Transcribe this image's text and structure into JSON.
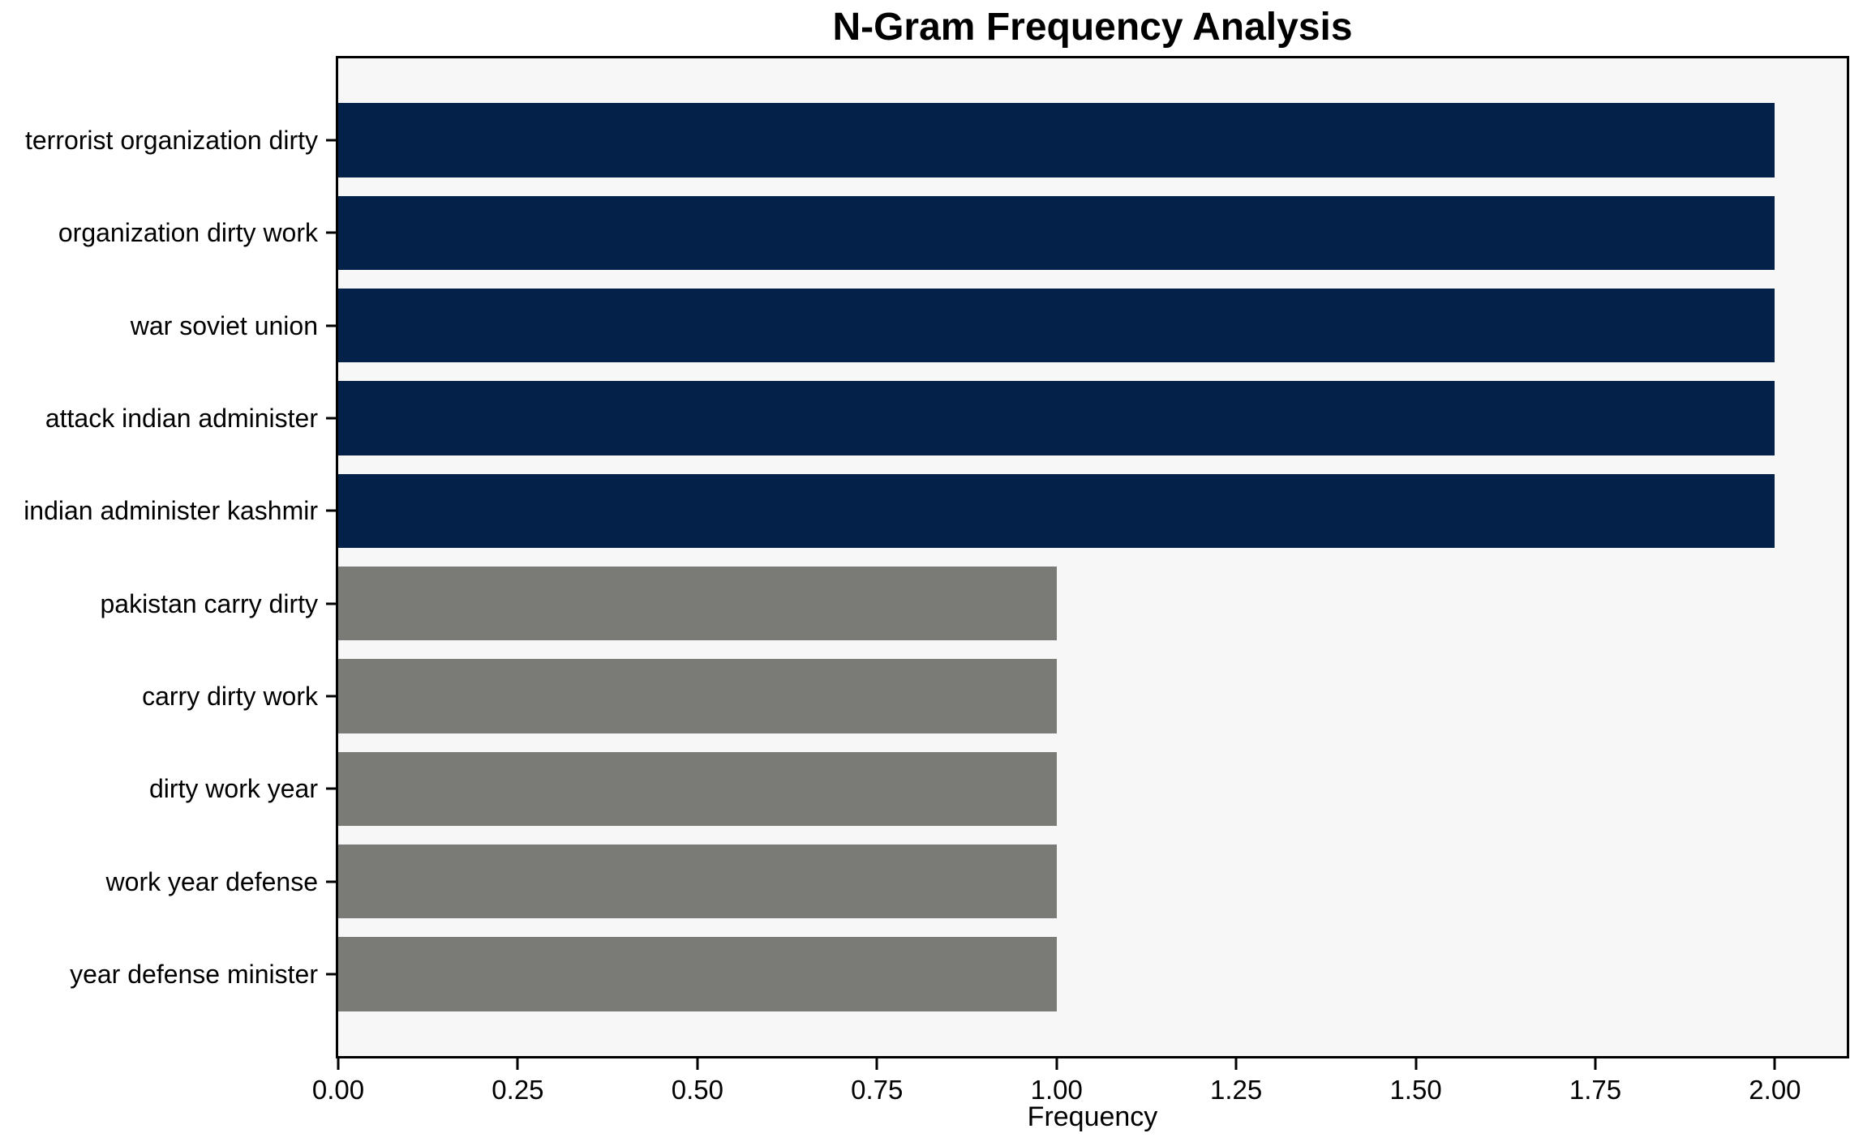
{
  "chart_data": {
    "type": "bar",
    "orientation": "horizontal",
    "title": "N-Gram Frequency Analysis",
    "xlabel": "Frequency",
    "ylabel": "",
    "categories": [
      "terrorist organization dirty",
      "organization dirty work",
      "war soviet union",
      "attack indian administer",
      "indian administer kashmir",
      "pakistan carry dirty",
      "carry dirty work",
      "dirty work year",
      "work year defense",
      "year defense minister"
    ],
    "values": [
      2,
      2,
      2,
      2,
      2,
      1,
      1,
      1,
      1,
      1
    ],
    "bar_colors": [
      "#042149",
      "#042149",
      "#042149",
      "#042149",
      "#042149",
      "#7a7a77",
      "#7a7a77",
      "#7a7a77",
      "#7a7a77",
      "#7a7a77"
    ],
    "xlim": [
      0,
      2.1
    ],
    "x_tick_values": [
      0,
      0.25,
      0.5,
      0.75,
      1.0,
      1.25,
      1.5,
      1.75,
      2.0
    ],
    "x_tick_labels": [
      "0.00",
      "0.25",
      "0.50",
      "0.75",
      "1.00",
      "1.25",
      "1.50",
      "1.75",
      "2.00"
    ],
    "grid": "off",
    "legend": "none",
    "bar_height_fraction": 0.8,
    "colors": {
      "high_freq_bar": "#042149",
      "low_freq_bar": "#7a7a77",
      "plot_background": "#f7f7f7",
      "figure_background": "#ffffff",
      "spine": "#000000",
      "text": "#000000"
    }
  }
}
